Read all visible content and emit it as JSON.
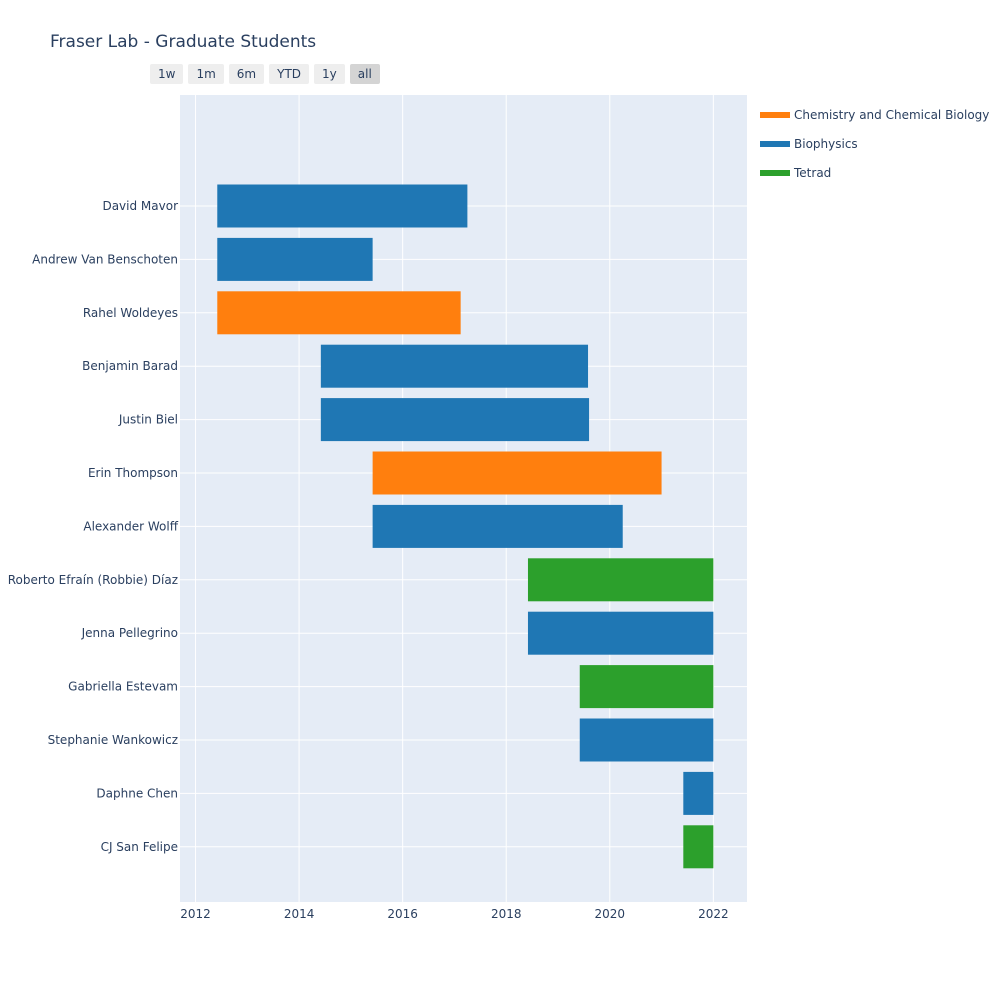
{
  "chart_data": {
    "type": "bar",
    "orientation": "horizontal-timeline",
    "title": "Fraser Lab - Graduate Students",
    "xlabel": "",
    "ylabel": "",
    "xlim": [
      2011.7,
      2022.65
    ],
    "x_ticks": [
      2012,
      2014,
      2016,
      2018,
      2020,
      2022
    ],
    "grid": true,
    "legend_placement": "top-right",
    "range_buttons": [
      {
        "label": "1w",
        "active": false
      },
      {
        "label": "1m",
        "active": false
      },
      {
        "label": "6m",
        "active": false
      },
      {
        "label": "YTD",
        "active": false
      },
      {
        "label": "1y",
        "active": false
      },
      {
        "label": "all",
        "active": true
      }
    ],
    "series": [
      {
        "name": "Chemistry and Chemical Biology",
        "color": "#ff7f0e"
      },
      {
        "name": "Biophysics",
        "color": "#1f77b4"
      },
      {
        "name": "Tetrad",
        "color": "#2ca02c"
      }
    ],
    "tasks": [
      {
        "name": "David Mavor",
        "start": 2012.42,
        "end": 2017.25,
        "series": "Biophysics"
      },
      {
        "name": "Andrew Van Benschoten",
        "start": 2012.42,
        "end": 2015.42,
        "series": "Biophysics"
      },
      {
        "name": "Rahel Woldeyes",
        "start": 2012.42,
        "end": 2017.12,
        "series": "Chemistry and Chemical Biology"
      },
      {
        "name": "Benjamin Barad",
        "start": 2014.42,
        "end": 2019.58,
        "series": "Biophysics"
      },
      {
        "name": "Justin Biel",
        "start": 2014.42,
        "end": 2019.6,
        "series": "Biophysics"
      },
      {
        "name": "Erin Thompson",
        "start": 2015.42,
        "end": 2021.0,
        "series": "Chemistry and Chemical Biology"
      },
      {
        "name": "Alexander Wolff",
        "start": 2015.42,
        "end": 2020.25,
        "series": "Biophysics"
      },
      {
        "name": "Roberto Efraín (Robbie) Díaz",
        "start": 2018.42,
        "end": 2022.0,
        "series": "Tetrad"
      },
      {
        "name": "Jenna Pellegrino",
        "start": 2018.42,
        "end": 2022.0,
        "series": "Biophysics"
      },
      {
        "name": "Gabriella Estevam",
        "start": 2019.42,
        "end": 2022.0,
        "series": "Tetrad"
      },
      {
        "name": "Stephanie Wankowicz",
        "start": 2019.42,
        "end": 2022.0,
        "series": "Biophysics"
      },
      {
        "name": "Daphne Chen",
        "start": 2021.42,
        "end": 2022.0,
        "series": "Biophysics"
      },
      {
        "name": "CJ San Felipe",
        "start": 2021.42,
        "end": 2022.0,
        "series": "Tetrad"
      }
    ]
  }
}
